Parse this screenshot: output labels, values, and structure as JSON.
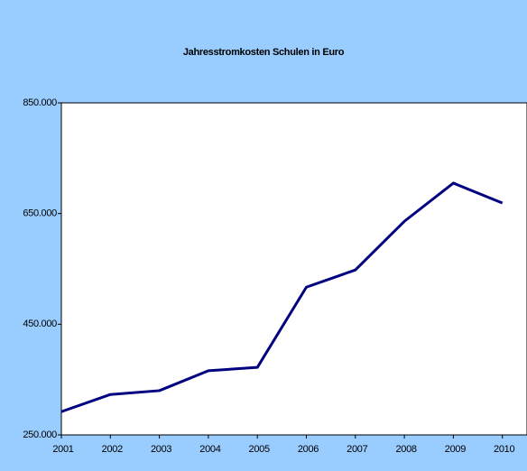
{
  "chart_data": {
    "type": "line",
    "title": "Jahresstromkosten Schulen in Euro",
    "categories": [
      "2001",
      "2002",
      "2003",
      "2004",
      "2005",
      "2006",
      "2007",
      "2008",
      "2009",
      "2010"
    ],
    "series": [
      {
        "name": "Jahresstromkosten",
        "color": "#000080",
        "values": [
          292000,
          323000,
          330000,
          366000,
          372000,
          517000,
          548000,
          636000,
          705000,
          669000
        ]
      }
    ],
    "ylim": [
      250000,
      850000
    ],
    "yticks": [
      {
        "value": 250000,
        "label": "250.000"
      },
      {
        "value": 450000,
        "label": "450.000"
      },
      {
        "value": 650000,
        "label": "650.000"
      },
      {
        "value": 850000,
        "label": "850.000"
      }
    ],
    "background": "#99ccff",
    "plot_background": "#ffffff"
  }
}
